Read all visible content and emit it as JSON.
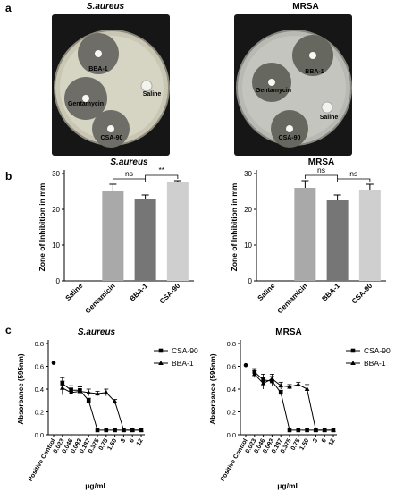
{
  "figure": {
    "panel_a": "a",
    "panel_b": "b",
    "panel_c": "c"
  },
  "plates": [
    {
      "title": "S.aureus",
      "labels": {
        "bba": "BBA-1",
        "gentamicin": "Gentamycin",
        "saline": "Saline",
        "csa": "CSA-90"
      }
    },
    {
      "title": "MRSA",
      "labels": {
        "bba": "BBA-1",
        "gentamicin": "Gentamycin",
        "saline": "Saline",
        "csa": "CSA-90"
      }
    }
  ],
  "colors": {
    "gentamicin_bar": "#a9a9a9",
    "bba_bar": "#767676",
    "csa_bar": "#cfcfcf",
    "line": "#000000"
  },
  "chart_data": [
    {
      "type": "bar",
      "title": "S.aureus",
      "ylabel": "Zone of Inhibition in mm",
      "categories": [
        "Saline",
        "Gentamicin",
        "BBA-1",
        "CSA-90"
      ],
      "values": [
        0,
        25,
        23,
        27.5
      ],
      "errors": [
        0,
        2,
        1,
        0.5
      ],
      "ylim": [
        0,
        30
      ],
      "yticks": [
        "0",
        "10",
        "20",
        "30"
      ],
      "annotations": [
        {
          "label": "ns",
          "from": 1,
          "to": 2
        },
        {
          "label": "**",
          "from": 2,
          "to": 3
        }
      ]
    },
    {
      "type": "bar",
      "title": "MRSA",
      "ylabel": "Zone of Inhibition in mm",
      "categories": [
        "Saline",
        "Gentamicin",
        "BBA-1",
        "CSA-90"
      ],
      "values": [
        0,
        26,
        22.5,
        25.5
      ],
      "errors": [
        0,
        2,
        1.5,
        1.5
      ],
      "ylim": [
        0,
        30
      ],
      "yticks": [
        "0",
        "10",
        "20",
        "30"
      ],
      "annotations": [
        {
          "label": "ns",
          "from": 1,
          "to": 2
        },
        {
          "label": "ns",
          "from": 2,
          "to": 3
        }
      ]
    },
    {
      "type": "line",
      "title": "S.aureus",
      "xlabel": "μg/mL",
      "ylabel": "Absorbance (595nm)",
      "categories": [
        "Positive Control",
        "0.023",
        "0.046",
        "0.093",
        "0.187",
        "0.375",
        "0.75",
        "1.50",
        "3",
        "6",
        "12"
      ],
      "ylim": [
        0,
        0.8
      ],
      "yticks": [
        "0.0",
        "0.2",
        "0.4",
        "0.6",
        "0.8"
      ],
      "positive_control": 0.63,
      "series": [
        {
          "name": "CSA-90",
          "marker": "square",
          "values": [
            null,
            0.45,
            0.39,
            0.39,
            0.3,
            0.04,
            0.04,
            0.04,
            0.04,
            0.04,
            0.04
          ],
          "errors": [
            null,
            0.05,
            0.04,
            0.03,
            0.02,
            0.01,
            0.01,
            0.01,
            0.01,
            0.01,
            0.01
          ]
        },
        {
          "name": "BBA-1",
          "marker": "triangle",
          "values": [
            null,
            0.41,
            0.37,
            0.38,
            0.37,
            0.36,
            0.37,
            0.29,
            0.04,
            0.04,
            0.04
          ],
          "errors": [
            null,
            0.06,
            0.04,
            0.04,
            0.03,
            0.02,
            0.03,
            0.02,
            0.01,
            0.01,
            0.01
          ]
        }
      ],
      "legend": "top-right"
    },
    {
      "type": "line",
      "title": "MRSA",
      "xlabel": "μg/mL",
      "ylabel": "Absorbance (595nm)",
      "categories": [
        "Positive Control",
        "0.023",
        "0.046",
        "0.093",
        "0.187",
        "0.375",
        "0.75",
        "1.50",
        "3",
        "6",
        "12"
      ],
      "ylim": [
        0,
        0.8
      ],
      "yticks": [
        "0.0",
        "0.2",
        "0.4",
        "0.6",
        "0.8"
      ],
      "positive_control": 0.61,
      "series": [
        {
          "name": "CSA-90",
          "marker": "square",
          "values": [
            null,
            0.55,
            0.48,
            0.47,
            0.37,
            0.04,
            0.04,
            0.04,
            0.04,
            0.04,
            0.04
          ],
          "errors": [
            null,
            0.03,
            0.05,
            0.04,
            0.02,
            0.01,
            0.01,
            0.01,
            0.01,
            0.01,
            0.01
          ]
        },
        {
          "name": "BBA-1",
          "marker": "triangle",
          "values": [
            null,
            0.53,
            0.45,
            0.49,
            0.43,
            0.42,
            0.44,
            0.4,
            0.04,
            0.04,
            0.04
          ],
          "errors": [
            null,
            0.03,
            0.05,
            0.04,
            0.03,
            0.02,
            0.02,
            0.04,
            0.01,
            0.01,
            0.01
          ]
        }
      ],
      "legend": "top-right"
    }
  ]
}
